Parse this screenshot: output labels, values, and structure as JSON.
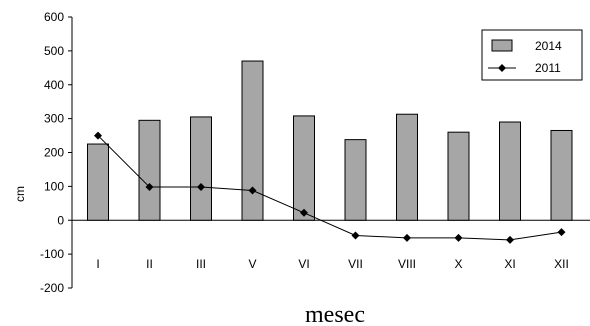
{
  "chart_data": {
    "type": "bar",
    "categories": [
      "I",
      "II",
      "III",
      "V",
      "VI",
      "VII",
      "VIII",
      "X",
      "XI",
      "XII"
    ],
    "series": [
      {
        "name": "2014",
        "type": "bar",
        "values": [
          225,
          295,
          305,
          470,
          308,
          238,
          313,
          260,
          290,
          265
        ]
      },
      {
        "name": "2011",
        "type": "line",
        "values": [
          250,
          98,
          98,
          88,
          22,
          -45,
          -52,
          -52,
          -58,
          -35
        ]
      }
    ],
    "xlabel": "mesec",
    "ylabel": "cm",
    "ylim": [
      -200,
      600
    ],
    "yticks": [
      600,
      500,
      400,
      300,
      200,
      100,
      0,
      -100,
      -200
    ],
    "ytick_labels": [
      "600",
      "500",
      "400",
      "300",
      "200",
      "100",
      "0",
      "-100",
      "-200"
    ],
    "legend_position": "top-right",
    "grid": false,
    "colors": {
      "bar_fill": "#a6a6a6",
      "bar_stroke": "#000000",
      "line": "#000000"
    }
  }
}
